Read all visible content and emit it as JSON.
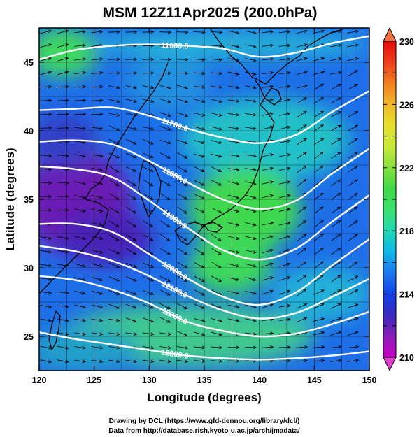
{
  "title": "MSM 12Z11Apr2025 (200.0hPa)",
  "x_axis": {
    "label": "Longitude (degrees)",
    "ticks": [
      120,
      125,
      130,
      135,
      140,
      145,
      150
    ],
    "range": [
      120,
      150
    ]
  },
  "y_axis": {
    "label": "Latitude  (degrees)",
    "ticks": [
      25,
      30,
      35,
      40,
      45
    ],
    "range": [
      22.5,
      47.5
    ]
  },
  "colorbar": {
    "ticks": [
      210,
      214,
      218,
      222,
      226,
      230
    ],
    "range": [
      210,
      230
    ],
    "colors": [
      "#c800c8",
      "#8a1fb4",
      "#3a2bc0",
      "#1440e6",
      "#1e78f0",
      "#10b8e8",
      "#20d8b0",
      "#3ce070",
      "#40d848",
      "#86e040",
      "#c8e838",
      "#e8e030",
      "#f0b828",
      "#f08020",
      "#f04020",
      "#e80808"
    ]
  },
  "contours": [
    {
      "label": "11600.0",
      "lats": [
        45.2,
        45.9,
        46.2,
        46.3,
        46.2,
        46.0,
        45.4,
        45.7,
        46.4,
        46.9
      ]
    },
    {
      "label": "11700.0",
      "lats": [
        41.5,
        41.6,
        41.7,
        41.1,
        40.2,
        39.5,
        39.1,
        39.7,
        41.4,
        42.9
      ]
    },
    {
      "label": "11800.0",
      "lats": [
        39.2,
        39.3,
        39.0,
        37.8,
        36.3,
        35.0,
        34.3,
        34.9,
        36.9,
        38.7
      ]
    },
    {
      "label": "11900.0",
      "lats": [
        37.4,
        37.2,
        36.6,
        34.9,
        33.0,
        31.3,
        30.6,
        31.4,
        33.4,
        35.3
      ]
    },
    {
      "label": "12000.0",
      "lats": [
        33.2,
        33.2,
        32.6,
        31.0,
        29.3,
        27.9,
        27.3,
        28.2,
        30.2,
        32.1
      ]
    },
    {
      "label": "12100.0",
      "lats": [
        31.6,
        31.2,
        30.5,
        29.4,
        28.0,
        26.9,
        26.3,
        26.7,
        27.9,
        29.2
      ]
    },
    {
      "label": "12200.0",
      "lats": [
        29.4,
        29.1,
        28.4,
        27.4,
        26.1,
        25.4,
        25.0,
        25.2,
        25.9,
        26.8
      ]
    },
    {
      "label": "12300.0",
      "lats": [
        25.3,
        24.8,
        24.4,
        24.0,
        23.6,
        23.4,
        23.3,
        23.4,
        23.6,
        23.9
      ]
    }
  ],
  "credits": [
    "Drawing by DCL (https://www.gfd-dennou.org/library/dcl/)",
    "Data from http://database.rish.kyoto-u.ac.jp/arch/jmadata/"
  ]
}
